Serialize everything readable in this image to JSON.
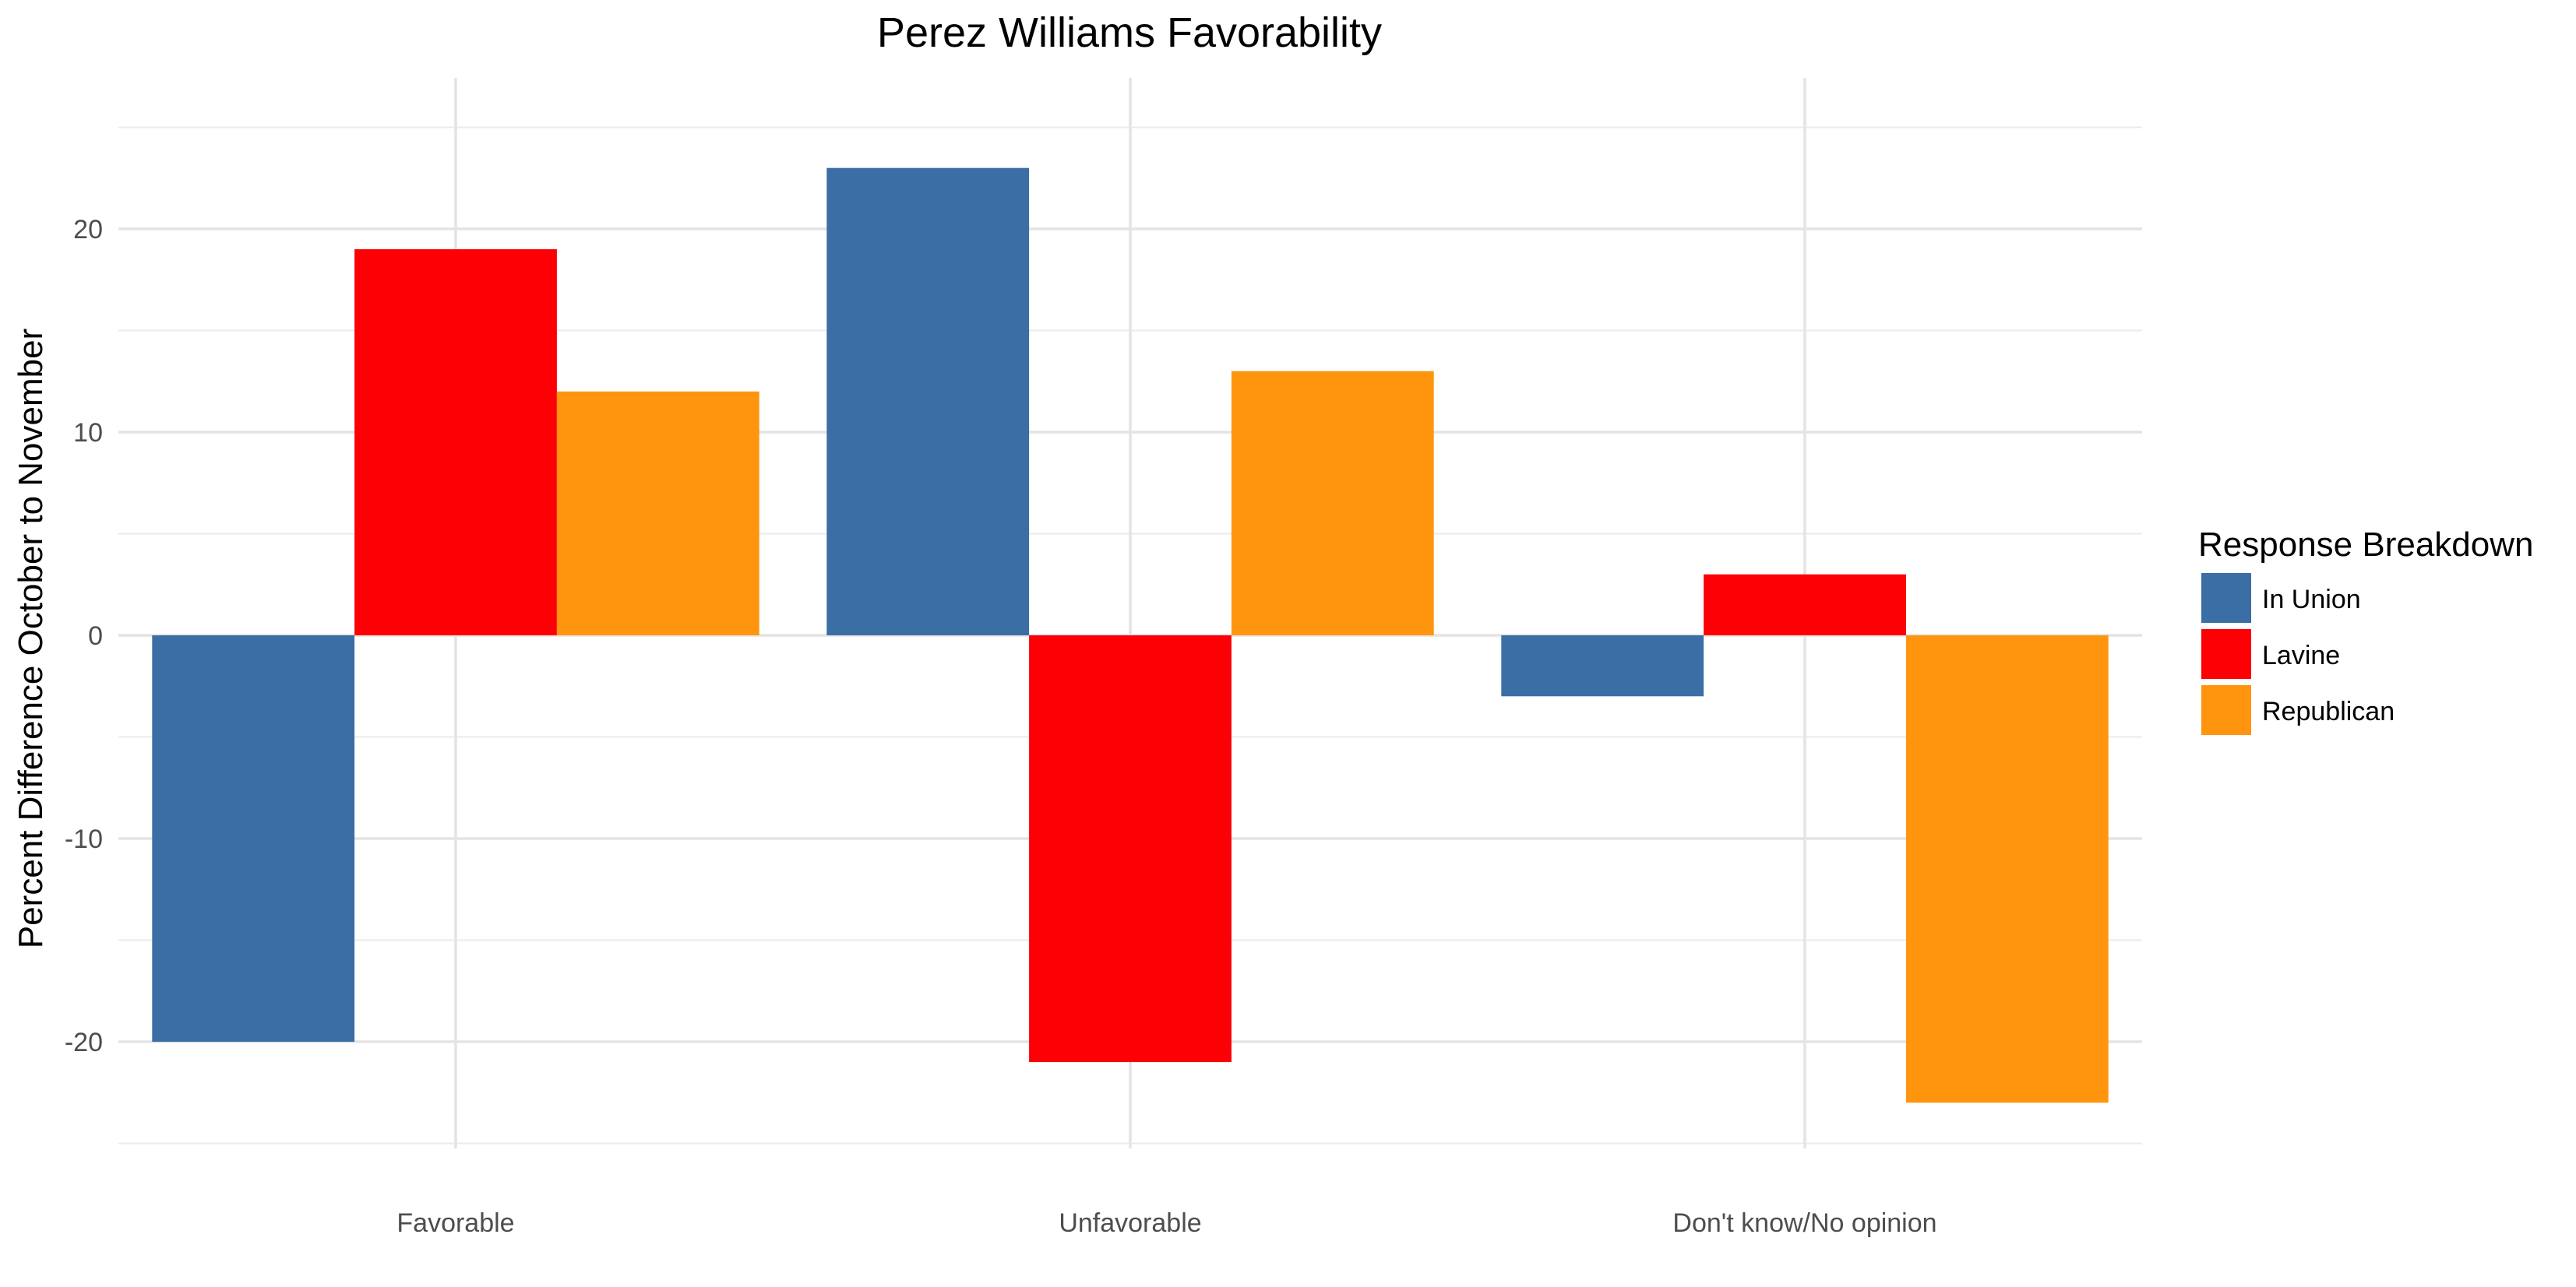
{
  "chart_data": {
    "type": "bar",
    "title": "Perez Williams Favorability",
    "xlabel": "",
    "ylabel": "Percent Difference October to November",
    "categories": [
      "Favorable",
      "Unfavorable",
      "Don't know/No opinion"
    ],
    "series": [
      {
        "name": "In Union",
        "color": "#3A6EA5",
        "values": [
          -20,
          23,
          -3
        ]
      },
      {
        "name": "Lavine",
        "color": "#FC0006",
        "values": [
          19,
          -21,
          3
        ]
      },
      {
        "name": "Republican",
        "color": "#FF950E",
        "values": [
          12,
          13,
          -23
        ]
      }
    ],
    "ylim": [
      -25,
      25
    ],
    "yticks": [
      -20,
      -10,
      0,
      10,
      20
    ],
    "grid": true,
    "legend": {
      "title": "Response Breakdown",
      "position": "right"
    }
  }
}
